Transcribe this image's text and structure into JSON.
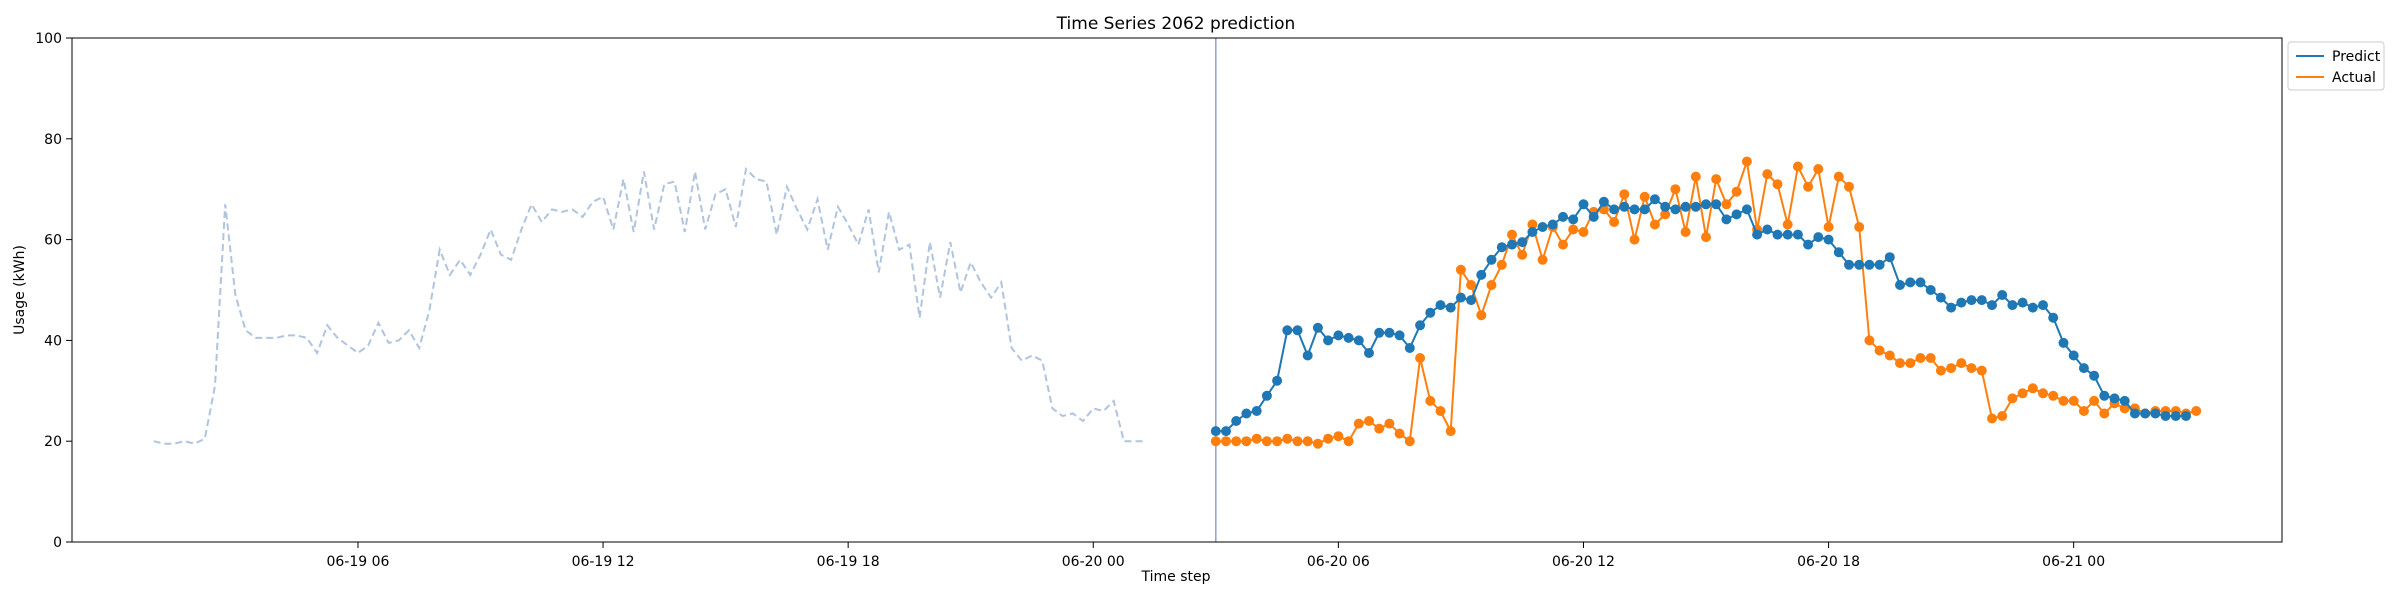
{
  "chart_data": {
    "type": "line",
    "title": "Time Series 2062 prediction",
    "xlabel": "Time step",
    "ylabel": "Usage (kWh)",
    "ylim": [
      0,
      100
    ],
    "yticks": [
      0,
      20,
      40,
      60,
      80,
      100
    ],
    "xticks": [
      {
        "label": "06-19 06",
        "hour": 6
      },
      {
        "label": "06-19 12",
        "hour": 12
      },
      {
        "label": "06-19 18",
        "hour": 18
      },
      {
        "label": "06-20 00",
        "hour": 24
      },
      {
        "label": "06-20 06",
        "hour": 30
      },
      {
        "label": "06-20 12",
        "hour": 36
      },
      {
        "label": "06-20 18",
        "hour": 42
      },
      {
        "label": "06-21 00",
        "hour": 48
      }
    ],
    "xlim_hours": [
      -1.0,
      53.1
    ],
    "forecast_start_hour": 27,
    "history": {
      "start_hour": 1,
      "step_hours": 0.25,
      "color": "#b0c4de",
      "values": [
        20.0,
        19.5,
        19.5,
        20.0,
        19.5,
        20.5,
        31.0,
        67.0,
        49.0,
        42.0,
        40.5,
        40.5,
        40.5,
        41.0,
        41.0,
        40.5,
        37.5,
        43.0,
        40.5,
        39.0,
        37.5,
        39.0,
        43.5,
        39.5,
        40.0,
        42.0,
        38.5,
        46.0,
        58.0,
        53.0,
        56.0,
        53.0,
        57.0,
        62.0,
        57.0,
        56.0,
        62.0,
        67.0,
        63.5,
        66.0,
        65.5,
        66.0,
        64.5,
        67.5,
        68.5,
        62.0,
        72.0,
        61.5,
        73.5,
        62.0,
        71.0,
        71.5,
        61.5,
        73.5,
        62.0,
        69.0,
        70.0,
        62.5,
        74.0,
        72.0,
        71.5,
        61.0,
        70.5,
        66.0,
        62.0,
        68.0,
        58.0,
        66.5,
        63.0,
        59.0,
        66.0,
        53.5,
        65.5,
        58.0,
        59.0,
        44.5,
        59.5,
        48.5,
        59.5,
        49.5,
        55.5,
        51.5,
        48.5,
        51.5,
        38.5,
        36.0,
        37.0,
        36.0,
        26.5,
        25.0,
        25.5,
        24.0,
        26.5,
        26.0,
        28.0,
        20.0,
        20.0,
        20.0
      ]
    },
    "series": [
      {
        "name": "Predict",
        "color": "#1f77b4",
        "start_hour": 27,
        "step_hours": 0.25,
        "values": [
          22.0,
          22.0,
          24.0,
          25.5,
          26.0,
          29.0,
          32.0,
          42.0,
          42.0,
          37.0,
          42.5,
          40.0,
          41.0,
          40.5,
          40.0,
          37.5,
          41.5,
          41.5,
          41.0,
          38.5,
          43.0,
          45.5,
          47.0,
          46.5,
          48.5,
          48.0,
          53.0,
          56.0,
          58.5,
          59.0,
          59.5,
          61.5,
          62.5,
          63.0,
          64.5,
          64.0,
          67.0,
          64.5,
          67.5,
          66.0,
          66.5,
          66.0,
          66.0,
          68.0,
          66.5,
          66.0,
          66.5,
          66.5,
          67.0,
          67.0,
          64.0,
          65.0,
          66.0,
          61.0,
          62.0,
          61.0,
          61.0,
          61.0,
          59.0,
          60.5,
          60.0,
          57.5,
          55.0,
          55.0,
          55.0,
          55.0,
          56.5,
          51.0,
          51.5,
          51.5,
          50.0,
          48.5,
          46.5,
          47.5,
          48.0,
          48.0,
          47.0,
          49.0,
          47.0,
          47.5,
          46.5,
          47.0,
          44.5,
          39.5,
          37.0,
          34.5,
          33.0,
          29.0,
          28.5,
          28.0,
          25.5,
          25.5,
          25.5,
          25.0,
          25.0,
          25.0
        ]
      },
      {
        "name": "Actual",
        "color": "#ff7f0e",
        "start_hour": 27,
        "step_hours": 0.25,
        "values": [
          20.0,
          20.0,
          20.0,
          20.0,
          20.5,
          20.0,
          20.0,
          20.5,
          20.0,
          20.0,
          19.5,
          20.5,
          21.0,
          20.0,
          23.5,
          24.0,
          22.5,
          23.5,
          21.5,
          20.0,
          36.5,
          28.0,
          26.0,
          22.0,
          54.0,
          51.0,
          45.0,
          51.0,
          55.0,
          61.0,
          57.0,
          63.0,
          56.0,
          62.5,
          59.0,
          62.0,
          61.5,
          65.5,
          66.0,
          63.5,
          69.0,
          60.0,
          68.5,
          63.0,
          65.0,
          70.0,
          61.5,
          72.5,
          60.5,
          72.0,
          67.0,
          69.5,
          75.5,
          62.0,
          73.0,
          71.0,
          63.0,
          74.5,
          70.5,
          74.0,
          62.5,
          72.5,
          70.5,
          62.5,
          40.0,
          38.0,
          37.0,
          35.5,
          35.5,
          36.5,
          36.5,
          34.0,
          34.5,
          35.5,
          34.5,
          34.0,
          24.5,
          25.0,
          28.5,
          29.5,
          30.5,
          29.5,
          29.0,
          28.0,
          28.0,
          26.0,
          28.0,
          25.5,
          27.5,
          26.5,
          26.5,
          25.5,
          26.0,
          26.0,
          26.0,
          25.5,
          26.0
        ]
      }
    ],
    "legend": {
      "position": "upper-right-outside",
      "entries": [
        "Predict",
        "Actual"
      ]
    }
  }
}
